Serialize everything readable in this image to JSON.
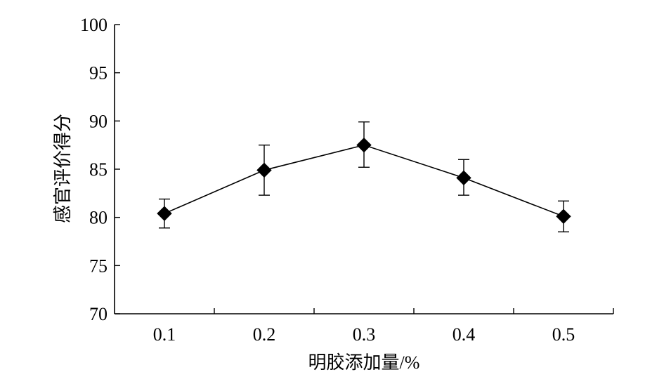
{
  "chart_data": {
    "type": "line",
    "title": "",
    "xlabel": "明胶添加量/%",
    "ylabel": "感官评价得分",
    "x": [
      0.1,
      0.2,
      0.3,
      0.4,
      0.5
    ],
    "x_tick_labels": [
      "0.1",
      "0.2",
      "0.3",
      "0.4",
      "0.5"
    ],
    "y_tick_labels": [
      "70",
      "75",
      "80",
      "85",
      "90",
      "95",
      "100"
    ],
    "ylim": [
      70,
      100
    ],
    "series": [
      {
        "values": [
          80.4,
          84.9,
          87.5,
          84.1,
          80.1
        ],
        "error_lower": [
          78.9,
          82.3,
          85.2,
          82.3,
          78.5
        ],
        "error_upper": [
          81.9,
          87.5,
          89.9,
          86.0,
          81.7
        ],
        "marker": "diamond",
        "color": "#000000"
      }
    ],
    "grid": false,
    "legend": "none"
  }
}
